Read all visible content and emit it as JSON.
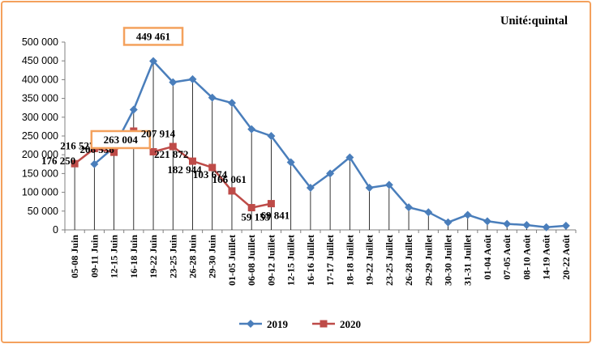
{
  "chart_data": {
    "type": "line",
    "unit_label": "Unité:quintal",
    "categories": [
      "05-08 Juin",
      "09-11 Juin",
      "12-15 Juin",
      "16-18 Juin",
      "19-22 Juin",
      "23-25 Juin",
      "26-28 Juin",
      "29-30 Juin",
      "01-05 Juillet",
      "06-08 Juillet",
      "09-12 Juillet",
      "12-15 Juillet",
      "16-16 Juillet",
      "17-17 Juillet",
      "18-18 Juillet",
      "19-22 Juillet",
      "23-25 Juillet",
      "26-28 Juillet",
      "29-29 Juillet",
      "30-30 Juillet",
      "31-31 Juillet",
      "01-04 Août",
      "07-05 Août",
      "08-10 Août",
      "14-19 Août",
      "20-22 Août"
    ],
    "y_ticks": [
      "0",
      "50 000",
      "100 000",
      "150 000",
      "200 000",
      "250 000",
      "300 000",
      "350 000",
      "400 000",
      "450 000",
      "500 000"
    ],
    "ylim": [
      0,
      500000
    ],
    "grid": false,
    "legend_position": "bottom",
    "series": [
      {
        "name": "2019",
        "color": "#4a7ebb",
        "marker": "diamond",
        "values": [
          null,
          175000,
          220000,
          320000,
          449461,
          393000,
          401000,
          352000,
          338000,
          268000,
          250000,
          180000,
          112000,
          150000,
          193000,
          112000,
          120000,
          60000,
          47000,
          20000,
          40000,
          23000,
          16000,
          13000,
          7000,
          11000
        ]
      },
      {
        "name": "2020",
        "color": "#be4b48",
        "marker": "square",
        "values": [
          176250,
          216527,
          206536,
          263004,
          207914,
          221872,
          182944,
          166061,
          103674,
          59153,
          69841,
          null,
          null,
          null,
          null,
          null,
          null,
          null,
          null,
          null,
          null,
          null,
          null,
          null,
          null,
          null
        ]
      }
    ],
    "annotations": [
      {
        "series": 0,
        "index": 4,
        "text": "449 461",
        "boxed": true
      },
      {
        "series": 1,
        "index": 0,
        "text": "176 250"
      },
      {
        "series": 1,
        "index": 1,
        "text": "216 527"
      },
      {
        "series": 1,
        "index": 2,
        "text": "206 536"
      },
      {
        "series": 1,
        "index": 3,
        "text": "263 004",
        "boxed": true
      },
      {
        "series": 1,
        "index": 4,
        "text": "207 914"
      },
      {
        "series": 1,
        "index": 5,
        "text": "221 872"
      },
      {
        "series": 1,
        "index": 6,
        "text": "182 944"
      },
      {
        "series": 1,
        "index": 7,
        "text": "166 061"
      },
      {
        "series": 1,
        "index": 8,
        "text": "103 674"
      },
      {
        "series": 1,
        "index": 9,
        "text": "59 153"
      },
      {
        "series": 1,
        "index": 10,
        "text": "69 841"
      }
    ],
    "highlight_color": "#f4a15d"
  }
}
